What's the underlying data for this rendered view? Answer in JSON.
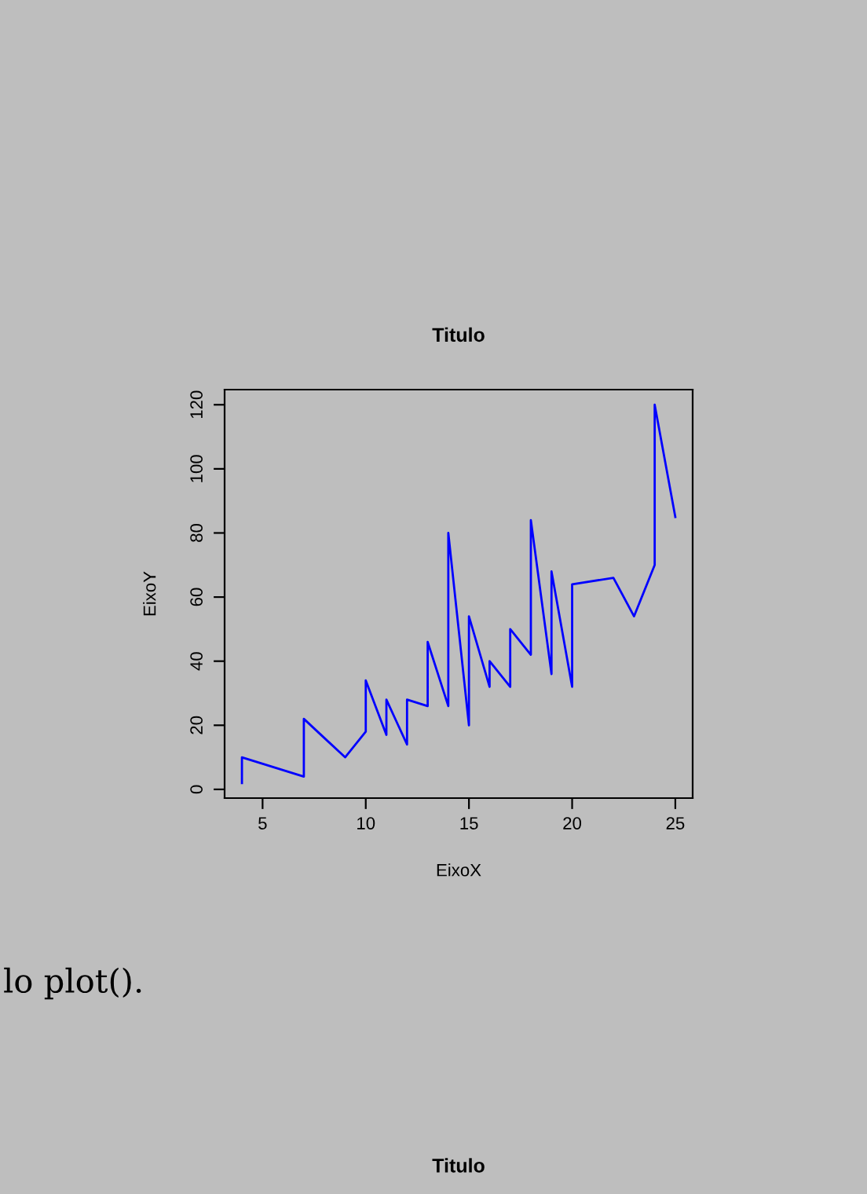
{
  "chart_data": {
    "type": "line",
    "title": "Titulo",
    "xlabel": "EixoX",
    "ylabel": "EixoY",
    "x": [
      4,
      4,
      7,
      7,
      8,
      9,
      10,
      10,
      10,
      11,
      11,
      12,
      12,
      12,
      12,
      13,
      13,
      13,
      13,
      14,
      14,
      14,
      14,
      15,
      15,
      15,
      16,
      16,
      17,
      17,
      17,
      18,
      18,
      18,
      18,
      19,
      19,
      19,
      20,
      20,
      20,
      20,
      20,
      22,
      23,
      24,
      24,
      24,
      24,
      25
    ],
    "series": [
      {
        "color": "#0000ff",
        "values": [
          2,
          10,
          4,
          22,
          16,
          10,
          18,
          26,
          34,
          17,
          28,
          14,
          20,
          24,
          28,
          26,
          34,
          34,
          46,
          26,
          36,
          60,
          80,
          20,
          26,
          54,
          32,
          40,
          32,
          40,
          50,
          42,
          56,
          76,
          84,
          36,
          46,
          68,
          32,
          48,
          52,
          56,
          64,
          66,
          54,
          70,
          92,
          93,
          120,
          85
        ]
      }
    ],
    "xlim": [
      3.16,
      25.84
    ],
    "ylim": [
      -2.72,
      124.72
    ],
    "xticks": [
      5,
      10,
      15,
      20,
      25
    ],
    "yticks": [
      0,
      20,
      40,
      60,
      80,
      100,
      120
    ],
    "grid": false,
    "legend": false,
    "marker": "none",
    "line_style": "solid",
    "annotations": [
      "lo plot().",
      "Titulo"
    ]
  }
}
